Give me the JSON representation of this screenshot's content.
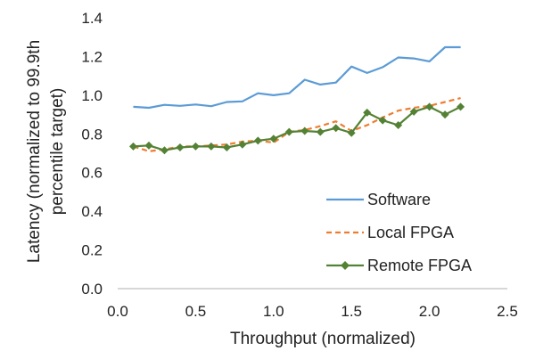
{
  "chart_data": {
    "type": "line",
    "xlabel": "Throughput (normalized)",
    "ylabel_lines": [
      "Latency (normalized to 99.9th",
      "percentile target)"
    ],
    "xlim": [
      0,
      2.5
    ],
    "ylim": [
      0,
      1.4
    ],
    "xticks": [
      "0.0",
      "0.5",
      "1.0",
      "1.5",
      "2.0",
      "2.5"
    ],
    "yticks": [
      "0.0",
      "0.2",
      "0.4",
      "0.6",
      "0.8",
      "1.0",
      "1.2",
      "1.4"
    ],
    "grid": false,
    "legend_position": "bottom-right",
    "series": [
      {
        "name": "Software",
        "color": "#5b9bd5",
        "style": "solid",
        "marker": "none",
        "points": [
          [
            0.1,
            0.94
          ],
          [
            0.2,
            0.935
          ],
          [
            0.3,
            0.95
          ],
          [
            0.4,
            0.945
          ],
          [
            0.5,
            0.952
          ],
          [
            0.6,
            0.943
          ],
          [
            0.7,
            0.965
          ],
          [
            0.8,
            0.968
          ],
          [
            0.9,
            1.01
          ],
          [
            1.0,
            1.0
          ],
          [
            1.1,
            1.01
          ],
          [
            1.2,
            1.08
          ],
          [
            1.3,
            1.055
          ],
          [
            1.4,
            1.065
          ],
          [
            1.5,
            1.148
          ],
          [
            1.6,
            1.115
          ],
          [
            1.7,
            1.145
          ],
          [
            1.8,
            1.195
          ],
          [
            1.9,
            1.19
          ],
          [
            2.0,
            1.175
          ],
          [
            2.1,
            1.248
          ],
          [
            2.2,
            1.248
          ]
        ]
      },
      {
        "name": "Local FPGA",
        "color": "#ed7d31",
        "style": "dashed",
        "marker": "none",
        "points": [
          [
            0.1,
            0.735
          ],
          [
            0.2,
            0.71
          ],
          [
            0.3,
            0.72
          ],
          [
            0.4,
            0.735
          ],
          [
            0.5,
            0.735
          ],
          [
            0.6,
            0.74
          ],
          [
            0.7,
            0.745
          ],
          [
            0.8,
            0.76
          ],
          [
            0.9,
            0.765
          ],
          [
            1.0,
            0.755
          ],
          [
            1.1,
            0.81
          ],
          [
            1.2,
            0.82
          ],
          [
            1.3,
            0.84
          ],
          [
            1.4,
            0.865
          ],
          [
            1.5,
            0.815
          ],
          [
            1.6,
            0.845
          ],
          [
            1.7,
            0.885
          ],
          [
            1.8,
            0.92
          ],
          [
            1.9,
            0.935
          ],
          [
            2.0,
            0.945
          ],
          [
            2.1,
            0.965
          ],
          [
            2.2,
            0.985
          ]
        ]
      },
      {
        "name": "Remote FPGA",
        "color": "#548235",
        "style": "solid",
        "marker": "diamond",
        "points": [
          [
            0.1,
            0.735
          ],
          [
            0.2,
            0.74
          ],
          [
            0.3,
            0.715
          ],
          [
            0.4,
            0.73
          ],
          [
            0.5,
            0.735
          ],
          [
            0.6,
            0.735
          ],
          [
            0.7,
            0.73
          ],
          [
            0.8,
            0.745
          ],
          [
            0.9,
            0.765
          ],
          [
            1.0,
            0.775
          ],
          [
            1.1,
            0.81
          ],
          [
            1.2,
            0.815
          ],
          [
            1.3,
            0.81
          ],
          [
            1.4,
            0.83
          ],
          [
            1.5,
            0.805
          ],
          [
            1.6,
            0.91
          ],
          [
            1.7,
            0.87
          ],
          [
            1.8,
            0.845
          ],
          [
            1.9,
            0.915
          ],
          [
            2.0,
            0.94
          ],
          [
            2.1,
            0.9
          ],
          [
            2.2,
            0.94
          ]
        ]
      }
    ]
  }
}
